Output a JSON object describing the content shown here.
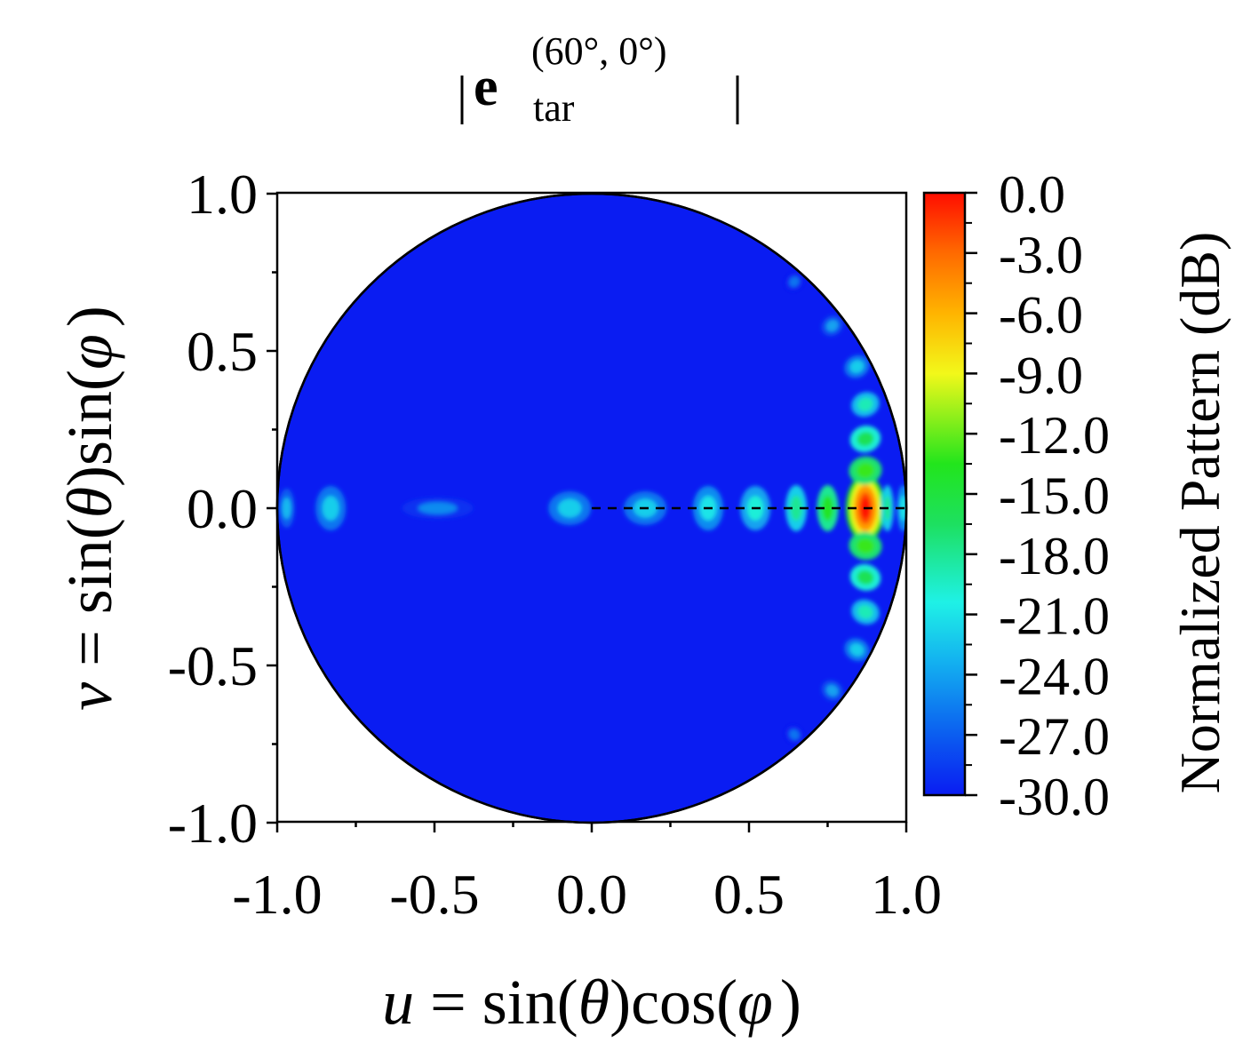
{
  "chart_data": {
    "type": "heatmap",
    "title": {
      "prefix": "|",
      "bold": "e",
      "superscript": "(60°, 0°)",
      "subscript": "tar",
      "suffix": "|"
    },
    "xlabel": {
      "var": "u",
      "eq": " = sin(",
      "theta": "θ",
      "mid": ")cos(",
      "phi": "φ",
      "end": ")"
    },
    "ylabel": {
      "var": "v",
      "eq": " = sin(",
      "theta": "θ",
      "mid": ")sin(",
      "phi": "φ",
      "end": ")"
    },
    "xlim": [
      -1.0,
      1.0
    ],
    "ylim": [
      -1.0,
      1.0
    ],
    "xticks": [
      "-1.0",
      "-0.5",
      "0.0",
      "0.5",
      "1.0"
    ],
    "yticks": [
      "1.0",
      "0.5",
      "0.0",
      "-0.5",
      "-1.0"
    ],
    "colorbar": {
      "label": "Normalized Pattern (dB)",
      "min": -30.0,
      "max": 0.0,
      "ticks": [
        "0.0",
        "-3.0",
        "-6.0",
        "-9.0",
        "-12.0",
        "-15.0",
        "-18.0",
        "-21.0",
        "-24.0",
        "-27.0",
        "-30.0"
      ]
    },
    "beam_direction": {
      "theta_deg": 60,
      "phi_deg": 0
    },
    "peak": {
      "u": 0.87,
      "v": 0.0,
      "db": 0.0
    },
    "guide_line": {
      "from": [
        0.0,
        0.0
      ],
      "to": [
        1.0,
        0.0
      ],
      "style": "dashed"
    },
    "lobes_on_u_axis": [
      {
        "u": -0.97,
        "db": -23
      },
      {
        "u": -0.83,
        "db": -22
      },
      {
        "u": -0.49,
        "db": -25
      },
      {
        "u": -0.07,
        "db": -22
      },
      {
        "u": 0.17,
        "db": -22
      },
      {
        "u": 0.37,
        "db": -21
      },
      {
        "u": 0.52,
        "db": -20
      },
      {
        "u": 0.65,
        "db": -18
      },
      {
        "u": 0.75,
        "db": -14
      },
      {
        "u": 0.87,
        "db": 0
      },
      {
        "u": 0.94,
        "db": -18
      },
      {
        "u": 0.99,
        "db": -21
      }
    ],
    "lobes_on_arc": [
      {
        "v": 0.12,
        "db": -13
      },
      {
        "v": 0.22,
        "db": -16
      },
      {
        "v": 0.33,
        "db": -19
      },
      {
        "v": 0.45,
        "db": -22
      },
      {
        "v": 0.58,
        "db": -24
      },
      {
        "v": 0.72,
        "db": -26
      },
      {
        "v": -0.12,
        "db": -13
      },
      {
        "v": -0.22,
        "db": -16
      },
      {
        "v": -0.33,
        "db": -19
      },
      {
        "v": -0.45,
        "db": -22
      },
      {
        "v": -0.58,
        "db": -24
      },
      {
        "v": -0.72,
        "db": -26
      }
    ]
  }
}
